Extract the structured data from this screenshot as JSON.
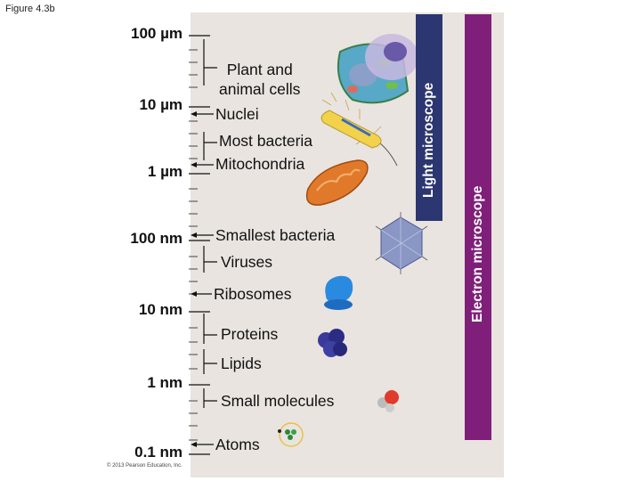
{
  "figure_label": "Figure 4.3b",
  "scale_labels": [
    "100 µm",
    "10 µm",
    "1 µm",
    "100 nm",
    "10 nm",
    "1 nm",
    "0.1 nm"
  ],
  "items": {
    "plant_animal": "Plant and\nanimal cells",
    "nuclei": "Nuclei",
    "most_bacteria": "Most bacteria",
    "mitochondria": "Mitochondria",
    "smallest_bacteria": "Smallest bacteria",
    "viruses": "Viruses",
    "ribosomes": "Ribosomes",
    "proteins": "Proteins",
    "lipids": "Lipids",
    "small_molecules": "Small molecules",
    "atoms": "Atoms"
  },
  "bars": {
    "light": "Light microscope",
    "electron": "Electron microscope"
  },
  "copyright": "© 2013 Pearson Education, Inc.",
  "colors": {
    "panel": "#e9e4df",
    "light_bar": "#2c3670",
    "electron_bar": "#7f1f7a"
  }
}
